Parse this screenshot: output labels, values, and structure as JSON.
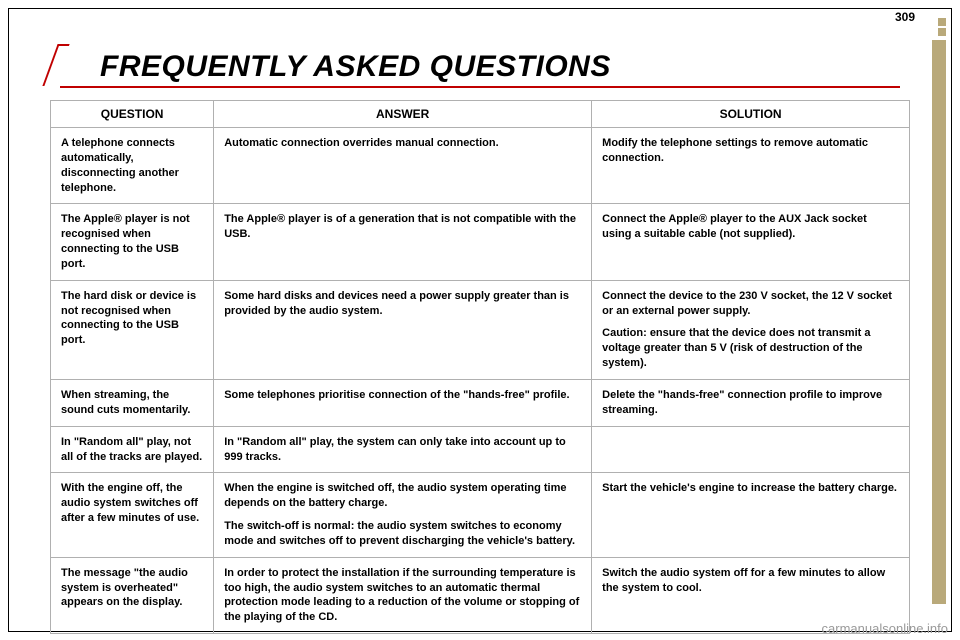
{
  "page_number": "309",
  "title": "FREQUENTLY ASKED QUESTIONS",
  "columns": {
    "q": "QUESTION",
    "a": "ANSWER",
    "s": "SOLUTION"
  },
  "rows": [
    {
      "q": "A telephone connects automatically, disconnecting another telephone.",
      "a": "Automatic connection overrides manual connection.",
      "s": "Modify the telephone settings to remove automatic connection."
    },
    {
      "q": "The Apple® player is not recognised when connecting to the USB port.",
      "a": "The Apple® player is of a generation that is not compatible with the USB.",
      "s": "Connect the Apple® player to the AUX Jack socket using a suitable cable (not supplied)."
    },
    {
      "q": "The hard disk or device is not recognised when connecting to the USB port.",
      "a": "Some hard disks and devices need a power supply greater than is provided by the audio system.",
      "s1": "Connect the device to the 230 V socket, the 12 V socket or an external power supply.",
      "s2": "Caution: ensure that the device does not transmit a voltage greater than 5 V (risk of destruction of the system)."
    },
    {
      "q": "When streaming, the sound cuts momentarily.",
      "a": "Some telephones prioritise connection of the \"hands-free\" profile.",
      "s": "Delete the \"hands-free\" connection profile to improve streaming."
    },
    {
      "q": "In \"Random all\" play, not all of the tracks are played.",
      "a": "In \"Random all\" play, the system can only take into account up to 999 tracks.",
      "s": ""
    },
    {
      "q": "With the engine off, the audio system switches off after a few minutes of use.",
      "a1": "When the engine is switched off, the audio system operating time depends on the battery charge.",
      "a2": "The switch-off is normal: the audio system switches to economy mode and switches off to prevent discharging the vehicle's battery.",
      "s": "Start the vehicle's engine to increase the battery charge."
    },
    {
      "q": "The message \"the audio system is overheated\" appears on the display.",
      "a": "In order to protect the installation if the surrounding temperature is too high, the audio system switches to an automatic thermal protection mode leading to a reduction of the volume or stopping of the playing of the CD.",
      "s": "Switch the audio system off for a few minutes to allow the system to cool."
    }
  ],
  "footer_link": "carmanualsonline.info"
}
